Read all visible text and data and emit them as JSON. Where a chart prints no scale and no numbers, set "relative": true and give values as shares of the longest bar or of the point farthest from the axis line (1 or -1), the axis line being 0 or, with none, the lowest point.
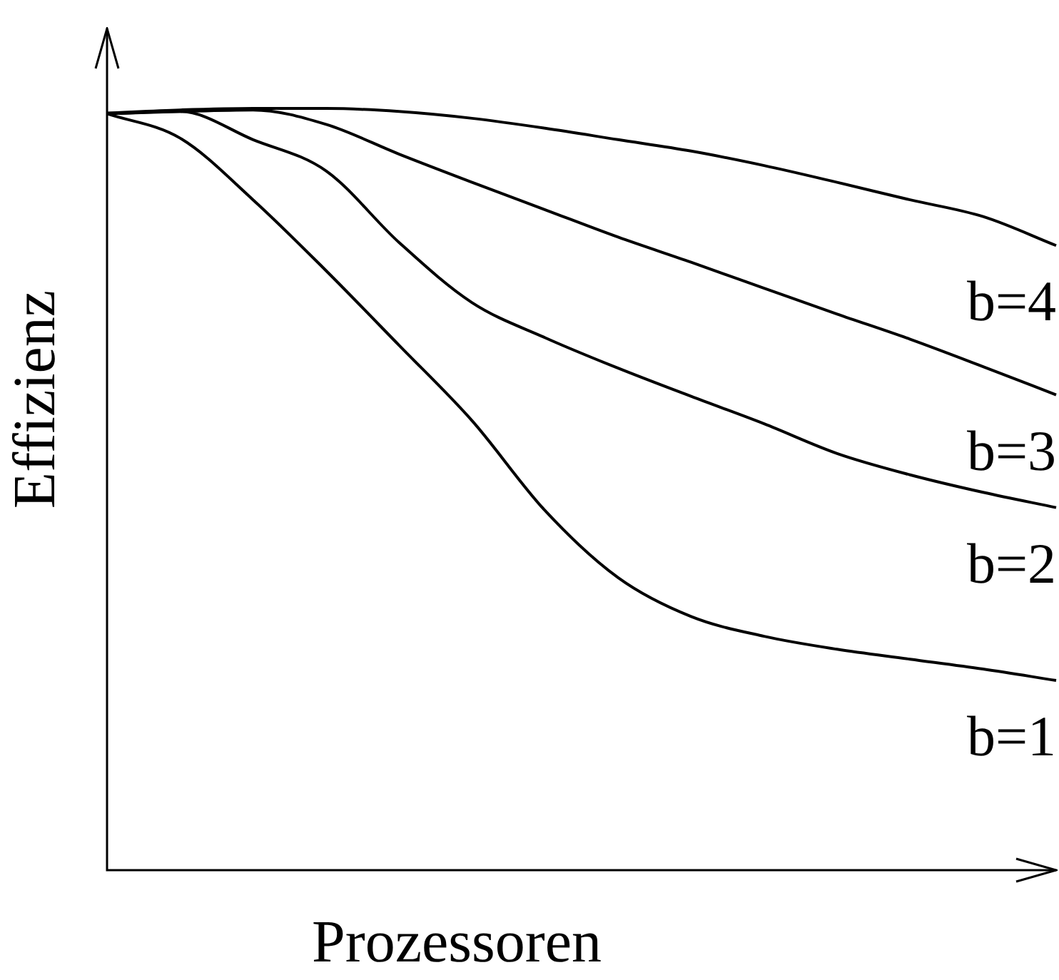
{
  "chart_data": {
    "type": "line",
    "relative": true,
    "xlabel": "Prozessoren",
    "ylabel": "Effizienz",
    "legend": false,
    "marker": "none",
    "categories": [
      null,
      null,
      null,
      null,
      null,
      null,
      null,
      null,
      null,
      null,
      null,
      null,
      null,
      null
    ],
    "series": [
      {
        "name": "b=4",
        "color": "#000000",
        "values": [
          0.994,
          0.998,
          1,
          1,
          0.996,
          0.987,
          0.974,
          0.959,
          0.944,
          0.925,
          0.903,
          0.88,
          0.858,
          0.82
        ]
      },
      {
        "name": "b=3",
        "color": "#000000",
        "values": [
          0.993,
          0.996,
          0.998,
          0.979,
          0.94,
          0.903,
          0.867,
          0.831,
          0.798,
          0.764,
          0.73,
          0.697,
          0.661,
          0.624
        ]
      },
      {
        "name": "b=2",
        "color": "#000000",
        "values": [
          0.993,
          0.996,
          0.959,
          0.918,
          0.824,
          0.745,
          0.699,
          0.659,
          0.622,
          0.586,
          0.547,
          0.519,
          0.496,
          0.476
        ]
      },
      {
        "name": "b=1",
        "color": "#000000",
        "values": [
          0.993,
          0.961,
          0.88,
          0.787,
          0.689,
          0.59,
          0.472,
          0.384,
          0.333,
          0.307,
          0.29,
          0.277,
          0.264,
          0.249
        ]
      }
    ]
  }
}
